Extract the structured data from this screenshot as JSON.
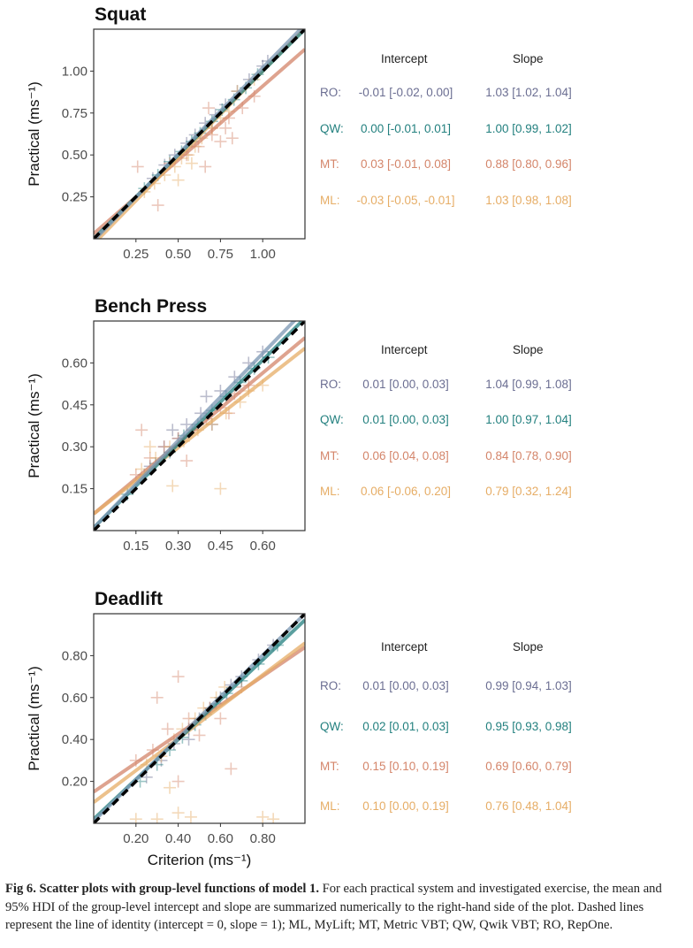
{
  "colors": {
    "RO": "#6b6e92",
    "QW": "#23807f",
    "MT": "#d4856a",
    "ML": "#e6ad66",
    "RO_line": "#7c97b3",
    "identity": "#000000"
  },
  "chart_data": [
    {
      "type": "scatter",
      "title": "Squat",
      "xlabel": "",
      "ylabel": "Practical (ms⁻¹)",
      "xlim": [
        0,
        1.25
      ],
      "ylim": [
        0,
        1.25
      ],
      "xticks": [
        0.25,
        0.5,
        0.75,
        1.0
      ],
      "xtick_labels": [
        "0.25",
        "0.50",
        "0.75",
        "1.00"
      ],
      "yticks": [
        0.25,
        0.5,
        0.75,
        1.0
      ],
      "ytick_labels": [
        "0.25",
        "0.50",
        "0.75",
        "1.00"
      ],
      "identity_line": {
        "intercept": 0,
        "slope": 1,
        "style": "dashed"
      },
      "series": [
        {
          "name": "RO",
          "intercept": -0.01,
          "slope": 1.03,
          "points": [
            [
              0.35,
              0.36
            ],
            [
              0.42,
              0.44
            ],
            [
              0.48,
              0.5
            ],
            [
              0.55,
              0.57
            ],
            [
              0.6,
              0.62
            ],
            [
              0.66,
              0.69
            ],
            [
              0.72,
              0.74
            ],
            [
              0.78,
              0.8
            ],
            [
              0.85,
              0.88
            ],
            [
              0.92,
              0.95
            ],
            [
              1.0,
              1.03
            ],
            [
              1.03,
              1.06
            ]
          ]
        },
        {
          "name": "QW",
          "intercept": 0.0,
          "slope": 1.0,
          "points": [
            [
              0.3,
              0.3
            ],
            [
              0.38,
              0.38
            ],
            [
              0.45,
              0.46
            ],
            [
              0.52,
              0.52
            ],
            [
              0.58,
              0.58
            ],
            [
              0.63,
              0.63
            ],
            [
              0.7,
              0.7
            ],
            [
              0.76,
              0.77
            ],
            [
              0.83,
              0.83
            ],
            [
              0.9,
              0.9
            ],
            [
              0.97,
              0.98
            ]
          ]
        },
        {
          "name": "MT",
          "intercept": 0.03,
          "slope": 0.88,
          "points": [
            [
              0.26,
              0.43
            ],
            [
              0.38,
              0.2
            ],
            [
              0.45,
              0.45
            ],
            [
              0.55,
              0.5
            ],
            [
              0.62,
              0.55
            ],
            [
              0.66,
              0.43
            ],
            [
              0.7,
              0.62
            ],
            [
              0.75,
              0.58
            ],
            [
              0.78,
              0.66
            ],
            [
              0.8,
              0.72
            ],
            [
              0.68,
              0.78
            ],
            [
              0.82,
              0.6
            ],
            [
              0.88,
              0.78
            ],
            [
              0.95,
              0.85
            ],
            [
              0.7,
              0.66
            ]
          ]
        },
        {
          "name": "ML",
          "intercept": -0.03,
          "slope": 1.03,
          "points": [
            [
              0.3,
              0.28
            ],
            [
              0.36,
              0.33
            ],
            [
              0.42,
              0.38
            ],
            [
              0.48,
              0.43
            ],
            [
              0.52,
              0.48
            ],
            [
              0.56,
              0.5
            ],
            [
              0.6,
              0.55
            ],
            [
              0.64,
              0.6
            ],
            [
              0.7,
              0.66
            ],
            [
              0.75,
              0.72
            ],
            [
              0.8,
              0.76
            ],
            [
              0.85,
              0.88
            ],
            [
              0.5,
              0.35
            ],
            [
              0.58,
              0.45
            ],
            [
              0.95,
              0.95
            ]
          ]
        }
      ],
      "table": {
        "header_intercept": "Intercept",
        "header_slope": "Slope",
        "rows": [
          {
            "label": "RO:",
            "intercept": "-0.01 [-0.02, 0.00]",
            "slope": "1.03 [1.02, 1.04]"
          },
          {
            "label": "QW:",
            "intercept": "0.00 [-0.01, 0.01]",
            "slope": "1.00 [0.99, 1.02]"
          },
          {
            "label": "MT:",
            "intercept": "0.03 [-0.01, 0.08]",
            "slope": "0.88 [0.80, 0.96]"
          },
          {
            "label": "ML:",
            "intercept": "-0.03 [-0.05, -0.01]",
            "slope": "1.03 [0.98, 1.08]"
          }
        ]
      }
    },
    {
      "type": "scatter",
      "title": "Bench Press",
      "xlabel": "",
      "ylabel": "Practical (ms⁻¹)",
      "xlim": [
        0,
        0.75
      ],
      "ylim": [
        0,
        0.75
      ],
      "xticks": [
        0.15,
        0.3,
        0.45,
        0.6
      ],
      "xtick_labels": [
        "0.15",
        "0.30",
        "0.45",
        "0.60"
      ],
      "yticks": [
        0.15,
        0.3,
        0.45,
        0.6
      ],
      "ytick_labels": [
        "0.15",
        "0.30",
        "0.45",
        "0.60"
      ],
      "identity_line": {
        "intercept": 0,
        "slope": 1,
        "style": "dashed"
      },
      "series": [
        {
          "name": "RO",
          "intercept": 0.01,
          "slope": 1.04,
          "points": [
            [
              0.2,
              0.23
            ],
            [
              0.25,
              0.3
            ],
            [
              0.3,
              0.33
            ],
            [
              0.33,
              0.38
            ],
            [
              0.38,
              0.42
            ],
            [
              0.4,
              0.48
            ],
            [
              0.45,
              0.5
            ],
            [
              0.5,
              0.55
            ],
            [
              0.55,
              0.6
            ],
            [
              0.6,
              0.64
            ],
            [
              0.28,
              0.36
            ],
            [
              0.42,
              0.38
            ]
          ]
        },
        {
          "name": "QW",
          "intercept": 0.01,
          "slope": 1.0,
          "points": [
            [
              0.12,
              0.13
            ],
            [
              0.18,
              0.2
            ],
            [
              0.22,
              0.24
            ],
            [
              0.27,
              0.28
            ],
            [
              0.32,
              0.34
            ],
            [
              0.37,
              0.38
            ],
            [
              0.42,
              0.43
            ],
            [
              0.47,
              0.48
            ],
            [
              0.52,
              0.53
            ],
            [
              0.57,
              0.58
            ],
            [
              0.62,
              0.62
            ]
          ]
        },
        {
          "name": "MT",
          "intercept": 0.06,
          "slope": 0.84,
          "points": [
            [
              0.15,
              0.2
            ],
            [
              0.2,
              0.26
            ],
            [
              0.25,
              0.3
            ],
            [
              0.3,
              0.33
            ],
            [
              0.35,
              0.36
            ],
            [
              0.4,
              0.4
            ],
            [
              0.45,
              0.44
            ],
            [
              0.5,
              0.49
            ],
            [
              0.55,
              0.52
            ],
            [
              0.48,
              0.42
            ],
            [
              0.33,
              0.25
            ],
            [
              0.17,
              0.36
            ]
          ]
        },
        {
          "name": "ML",
          "intercept": 0.06,
          "slope": 0.79,
          "points": [
            [
              0.17,
              0.22
            ],
            [
              0.22,
              0.26
            ],
            [
              0.27,
              0.3
            ],
            [
              0.32,
              0.32
            ],
            [
              0.37,
              0.36
            ],
            [
              0.42,
              0.38
            ],
            [
              0.47,
              0.42
            ],
            [
              0.52,
              0.46
            ],
            [
              0.28,
              0.16
            ],
            [
              0.45,
              0.15
            ],
            [
              0.55,
              0.5
            ],
            [
              0.6,
              0.52
            ],
            [
              0.2,
              0.3
            ]
          ]
        }
      ],
      "table": {
        "header_intercept": "Intercept",
        "header_slope": "Slope",
        "rows": [
          {
            "label": "RO:",
            "intercept": "0.01 [0.00, 0.03]",
            "slope": "1.04 [0.99, 1.08]"
          },
          {
            "label": "QW:",
            "intercept": "0.01 [0.00, 0.03]",
            "slope": "1.00 [0.97, 1.04]"
          },
          {
            "label": "MT:",
            "intercept": "0.06 [0.04, 0.08]",
            "slope": "0.84 [0.78, 0.90]"
          },
          {
            "label": "ML:",
            "intercept": "0.06 [-0.06, 0.20]",
            "slope": "0.79 [0.32, 1.24]"
          }
        ]
      }
    },
    {
      "type": "scatter",
      "title": "Deadlift",
      "xlabel": "Criterion (ms⁻¹)",
      "ylabel": "Practical (ms⁻¹)",
      "xlim": [
        0,
        1.0
      ],
      "ylim": [
        0,
        1.0
      ],
      "xticks": [
        0.2,
        0.4,
        0.6,
        0.8
      ],
      "xtick_labels": [
        "0.20",
        "0.40",
        "0.60",
        "0.80"
      ],
      "yticks": [
        0.2,
        0.4,
        0.6,
        0.8
      ],
      "ytick_labels": [
        "0.20",
        "0.40",
        "0.60",
        "0.80"
      ],
      "identity_line": {
        "intercept": 0,
        "slope": 1,
        "style": "dashed"
      },
      "series": [
        {
          "name": "RO",
          "intercept": 0.01,
          "slope": 0.99,
          "points": [
            [
              0.25,
              0.22
            ],
            [
              0.32,
              0.3
            ],
            [
              0.38,
              0.38
            ],
            [
              0.45,
              0.45
            ],
            [
              0.5,
              0.5
            ],
            [
              0.55,
              0.55
            ],
            [
              0.6,
              0.6
            ],
            [
              0.65,
              0.66
            ],
            [
              0.7,
              0.7
            ],
            [
              0.78,
              0.78
            ],
            [
              0.85,
              0.85
            ],
            [
              0.45,
              0.4
            ]
          ]
        },
        {
          "name": "QW",
          "intercept": 0.02,
          "slope": 0.95,
          "points": [
            [
              0.22,
              0.2
            ],
            [
              0.3,
              0.28
            ],
            [
              0.36,
              0.35
            ],
            [
              0.42,
              0.41
            ],
            [
              0.48,
              0.47
            ],
            [
              0.53,
              0.52
            ],
            [
              0.58,
              0.57
            ],
            [
              0.63,
              0.62
            ],
            [
              0.7,
              0.68
            ],
            [
              0.78,
              0.76
            ],
            [
              0.87,
              0.85
            ]
          ]
        },
        {
          "name": "MT",
          "intercept": 0.15,
          "slope": 0.69,
          "points": [
            [
              0.2,
              0.3
            ],
            [
              0.28,
              0.35
            ],
            [
              0.35,
              0.45
            ],
            [
              0.4,
              0.7
            ],
            [
              0.45,
              0.5
            ],
            [
              0.5,
              0.42
            ],
            [
              0.55,
              0.55
            ],
            [
              0.6,
              0.5
            ],
            [
              0.65,
              0.26
            ],
            [
              0.4,
              0.2
            ],
            [
              0.3,
              0.6
            ],
            [
              0.7,
              0.65
            ]
          ]
        },
        {
          "name": "ML",
          "intercept": 0.1,
          "slope": 0.76,
          "points": [
            [
              0.25,
              0.28
            ],
            [
              0.32,
              0.32
            ],
            [
              0.38,
              0.4
            ],
            [
              0.42,
              0.45
            ],
            [
              0.48,
              0.5
            ],
            [
              0.52,
              0.55
            ],
            [
              0.58,
              0.6
            ],
            [
              0.62,
              0.65
            ],
            [
              0.2,
              0.02
            ],
            [
              0.3,
              0.02
            ],
            [
              0.4,
              0.05
            ],
            [
              0.46,
              0.03
            ],
            [
              0.8,
              0.03
            ],
            [
              0.85,
              0.02
            ],
            [
              0.36,
              0.17
            ]
          ]
        }
      ],
      "table": {
        "header_intercept": "Intercept",
        "header_slope": "Slope",
        "rows": [
          {
            "label": "RO:",
            "intercept": "0.01 [0.00, 0.03]",
            "slope": "0.99 [0.94, 1.03]"
          },
          {
            "label": "QW:",
            "intercept": "0.02 [0.01, 0.03]",
            "slope": "0.95 [0.93, 0.98]"
          },
          {
            "label": "MT:",
            "intercept": "0.15 [0.10, 0.19]",
            "slope": "0.69 [0.60, 0.79]"
          },
          {
            "label": "ML:",
            "intercept": "0.10 [0.00, 0.19]",
            "slope": "0.76 [0.48, 1.04]"
          }
        ]
      }
    }
  ],
  "caption": {
    "bold": "Fig 6. Scatter plots with group-level functions of model 1.",
    "text": " For each practical system and investigated exercise, the mean and 95% HDI of the group-level intercept and slope are summarized numerically to the right-hand side of the plot. Dashed lines represent the line of identity (intercept = 0, slope = 1); ML, MyLift; MT, Metric VBT; QW, Qwik VBT; RO, RepOne."
  }
}
